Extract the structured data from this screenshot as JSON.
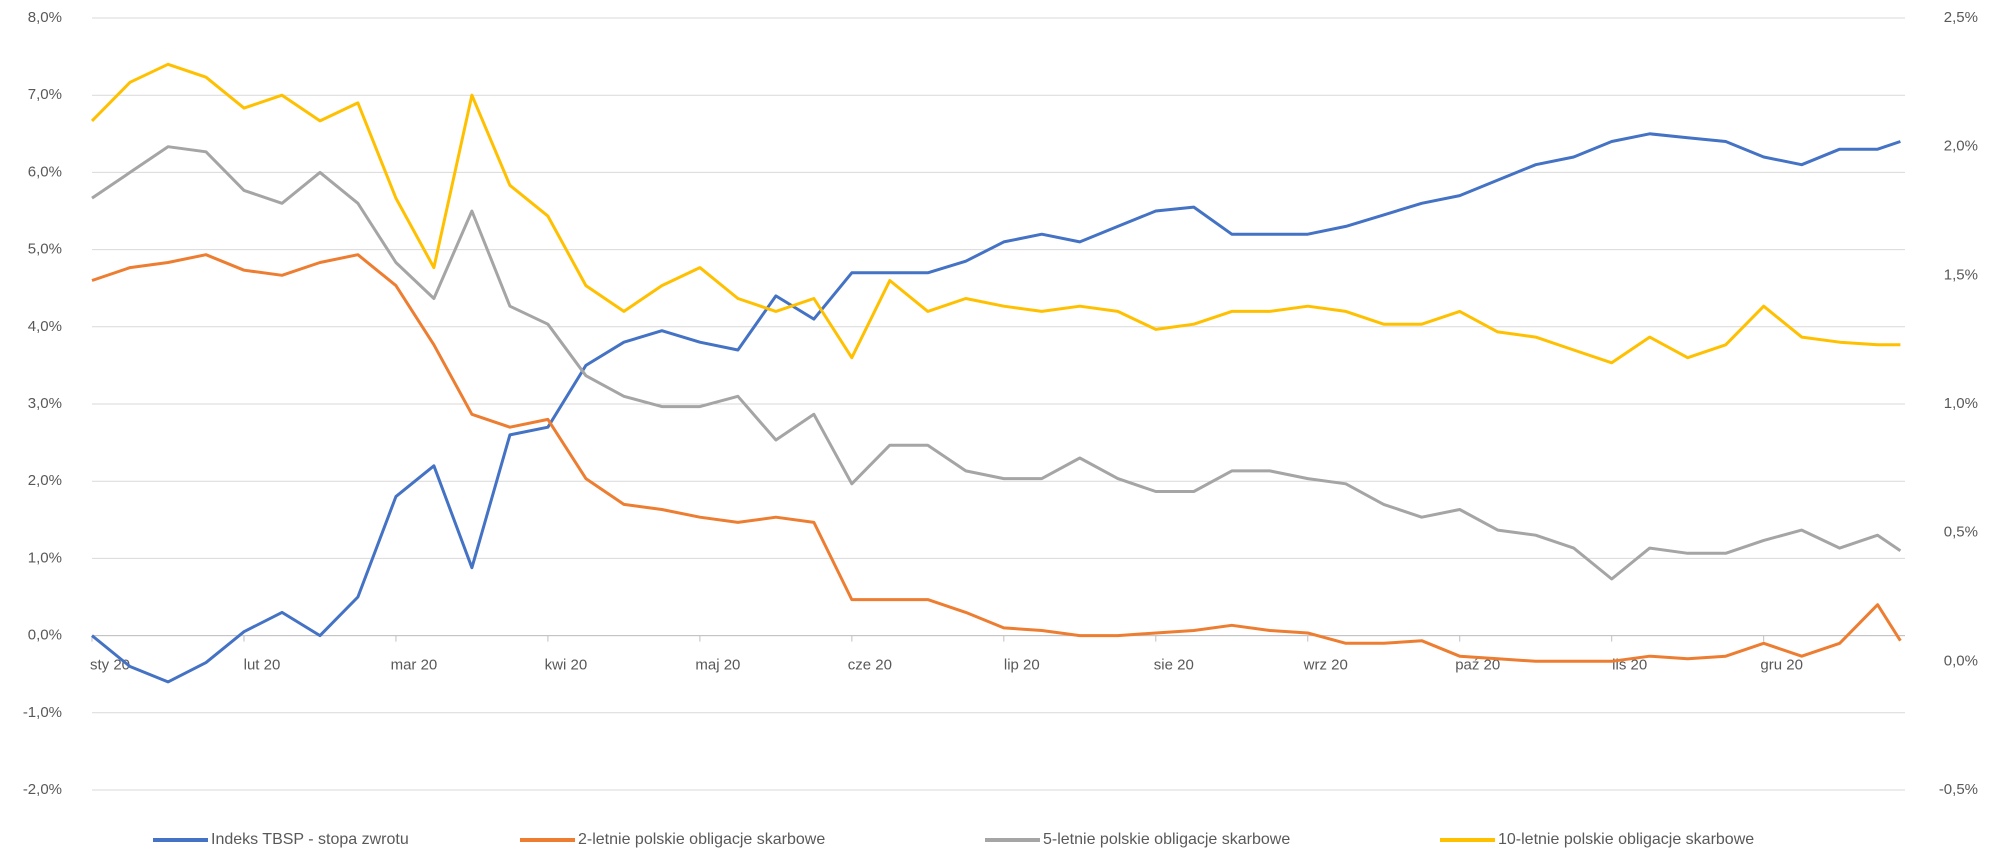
{
  "chart_data": {
    "type": "line",
    "x": [
      0,
      0.25,
      0.5,
      0.75,
      1,
      1.25,
      1.5,
      1.75,
      2,
      2.25,
      2.5,
      2.75,
      3,
      3.25,
      3.5,
      3.75,
      4,
      4.25,
      4.5,
      4.75,
      5,
      5.25,
      5.5,
      5.75,
      6,
      6.25,
      6.5,
      6.75,
      7,
      7.25,
      7.5,
      7.75,
      8,
      8.25,
      8.5,
      8.75,
      9,
      9.25,
      9.5,
      9.75,
      10,
      10.25,
      10.5,
      10.75,
      11,
      11.25,
      11.5,
      11.75,
      11.9
    ],
    "xlim": [
      0,
      11.93
    ],
    "xticks": [
      {
        "value": 0,
        "label": "sty 20"
      },
      {
        "value": 1,
        "label": "lut 20"
      },
      {
        "value": 2,
        "label": "mar 20"
      },
      {
        "value": 3,
        "label": "kwi 20"
      },
      {
        "value": 4,
        "label": "maj 20"
      },
      {
        "value": 5,
        "label": "cze 20"
      },
      {
        "value": 6,
        "label": "lip 20"
      },
      {
        "value": 7,
        "label": "sie 20"
      },
      {
        "value": 8,
        "label": "wrz 20"
      },
      {
        "value": 9,
        "label": "paź 20"
      },
      {
        "value": 10,
        "label": "lis 20"
      },
      {
        "value": 11,
        "label": "gru 20"
      }
    ],
    "ylim": [
      -2,
      8
    ],
    "yticks": [
      {
        "value": -2,
        "label": "-2,0%"
      },
      {
        "value": -1,
        "label": "-1,0%"
      },
      {
        "value": 0,
        "label": "0,0%"
      },
      {
        "value": 1,
        "label": "1,0%"
      },
      {
        "value": 2,
        "label": "2,0%"
      },
      {
        "value": 3,
        "label": "3,0%"
      },
      {
        "value": 4,
        "label": "4,0%"
      },
      {
        "value": 5,
        "label": "5,0%"
      },
      {
        "value": 6,
        "label": "6,0%"
      },
      {
        "value": 7,
        "label": "7,0%"
      },
      {
        "value": 8,
        "label": "8,0%"
      }
    ],
    "y2lim": [
      -0.5,
      2.5
    ],
    "y2ticks": [
      {
        "value": -0.5,
        "label": "-0,5%"
      },
      {
        "value": 0,
        "label": "0,0%"
      },
      {
        "value": 0.5,
        "label": "0,5%"
      },
      {
        "value": 1,
        "label": "1,0%"
      },
      {
        "value": 1.5,
        "label": "1,5%"
      },
      {
        "value": 2,
        "label": "2,0%"
      },
      {
        "value": 2.5,
        "label": "2,5%"
      }
    ],
    "grid": true,
    "legend": "bottom",
    "series": [
      {
        "name": "Indeks TBSP - stopa zwrotu",
        "color": "#4472c4",
        "values": [
          0,
          -0.4,
          -0.6,
          -0.35,
          0.05,
          0.3,
          0,
          0.5,
          1.8,
          2.2,
          0.88,
          2.6,
          2.7,
          3.5,
          3.8,
          3.95,
          3.8,
          3.7,
          4.4,
          4.1,
          4.7,
          4.7,
          4.7,
          4.85,
          5.1,
          5.2,
          5.1,
          5.3,
          5.5,
          5.55,
          5.2,
          5.2,
          5.2,
          5.3,
          5.45,
          5.6,
          5.7,
          5.9,
          6.1,
          6.2,
          6.4,
          6.5,
          6.45,
          6.4,
          6.2,
          6.1,
          6.3,
          6.3,
          6.4
        ]
      },
      {
        "name": "2-letnie polskie obligacje skarbowe",
        "color": "#ed7d31",
        "axis": "y2",
        "values": [
          1.48,
          1.53,
          1.55,
          1.58,
          1.52,
          1.5,
          1.55,
          1.58,
          1.46,
          1.23,
          0.96,
          0.91,
          0.94,
          0.71,
          0.61,
          0.59,
          0.56,
          0.54,
          0.56,
          0.54,
          0.24,
          0.24,
          0.24,
          0.19,
          0.13,
          0.12,
          0.1,
          0.1,
          0.11,
          0.12,
          0.14,
          0.12,
          0.11,
          0.07,
          0.07,
          0.08,
          0.02,
          0.01,
          0,
          0,
          0,
          0.02,
          0.01,
          0.02,
          0.07,
          0.02,
          0.07,
          0.22,
          0.08
        ]
      },
      {
        "name": "5-letnie polskie obligacje skarbowe",
        "color": "#a5a5a5",
        "axis": "y2",
        "values": [
          1.8,
          1.9,
          2,
          1.98,
          1.83,
          1.78,
          1.9,
          1.78,
          1.55,
          1.41,
          1.75,
          1.38,
          1.31,
          1.11,
          1.03,
          0.99,
          0.99,
          1.03,
          0.86,
          0.96,
          0.69,
          0.84,
          0.84,
          0.74,
          0.71,
          0.71,
          0.79,
          0.71,
          0.66,
          0.66,
          0.74,
          0.74,
          0.71,
          0.69,
          0.61,
          0.56,
          0.59,
          0.51,
          0.49,
          0.44,
          0.32,
          0.44,
          0.42,
          0.42,
          0.47,
          0.51,
          0.44,
          0.49,
          0.43
        ]
      },
      {
        "name": "10-letnie polskie obligacje skarbowe",
        "color": "#ffc000",
        "axis": "y2",
        "values": [
          2.1,
          2.25,
          2.32,
          2.27,
          2.15,
          2.2,
          2.1,
          2.17,
          1.8,
          1.53,
          2.2,
          1.85,
          1.73,
          1.46,
          1.36,
          1.46,
          1.53,
          1.41,
          1.36,
          1.41,
          1.18,
          1.48,
          1.36,
          1.41,
          1.38,
          1.36,
          1.38,
          1.36,
          1.29,
          1.31,
          1.36,
          1.36,
          1.38,
          1.36,
          1.31,
          1.31,
          1.36,
          1.28,
          1.26,
          1.21,
          1.16,
          1.26,
          1.18,
          1.23,
          1.38,
          1.26,
          1.24,
          1.23,
          1.23
        ]
      }
    ]
  }
}
